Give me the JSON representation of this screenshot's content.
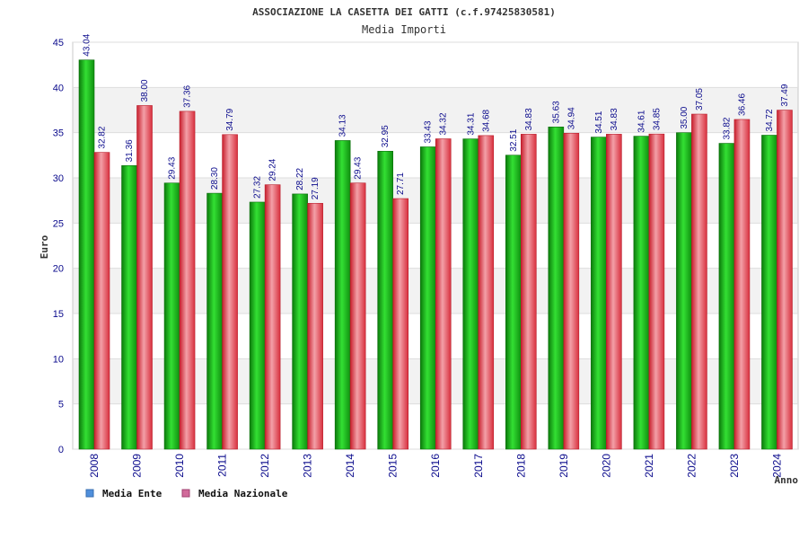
{
  "chart_data": {
    "type": "bar",
    "title": "ASSOCIAZIONE LA CASETTA DEI GATTI (c.f.97425830581)",
    "subtitle": "Media Importi",
    "xlabel": "Anno",
    "ylabel": "Euro",
    "ylim": [
      0,
      45
    ],
    "yticks": [
      0,
      5,
      10,
      15,
      20,
      25,
      30,
      35,
      40,
      45
    ],
    "categories": [
      "2008",
      "2009",
      "2010",
      "2011",
      "2012",
      "2013",
      "2014",
      "2015",
      "2016",
      "2017",
      "2018",
      "2019",
      "2020",
      "2021",
      "2022",
      "2023",
      "2024"
    ],
    "series": [
      {
        "name": "Media Ente",
        "color": "#1aa51a",
        "values": [
          43.04,
          31.36,
          29.43,
          28.3,
          27.32,
          28.22,
          34.13,
          32.95,
          33.43,
          34.31,
          32.51,
          35.63,
          34.51,
          34.61,
          35.0,
          33.82,
          34.72
        ],
        "labels": [
          "43.04",
          "31.36",
          "29.43",
          "28.30",
          "27.32",
          "28.22",
          "34.13",
          "32.95",
          "33.43",
          "34.31",
          "32.51",
          "35.63",
          "34.51",
          "34.61",
          "35.00",
          "33.82",
          "34.72"
        ]
      },
      {
        "name": "Media Nazionale",
        "color": "#e8404c",
        "values": [
          32.82,
          38.0,
          37.36,
          34.79,
          29.24,
          27.19,
          29.43,
          27.71,
          34.32,
          34.68,
          34.83,
          34.94,
          34.83,
          34.85,
          37.05,
          36.46,
          37.49
        ],
        "labels": [
          "32.82",
          "38.00",
          "37.36",
          "34.79",
          "29.24",
          "27.19",
          "29.43",
          "27.71",
          "34.32",
          "34.68",
          "34.83",
          "34.94",
          "34.83",
          "34.85",
          "37.05",
          "36.46",
          "37.49"
        ]
      }
    ],
    "legend": [
      {
        "label": "Media Ente",
        "color": "#4f8fdc"
      },
      {
        "label": "Media Nazionale",
        "color": "#d16a9a"
      }
    ]
  }
}
